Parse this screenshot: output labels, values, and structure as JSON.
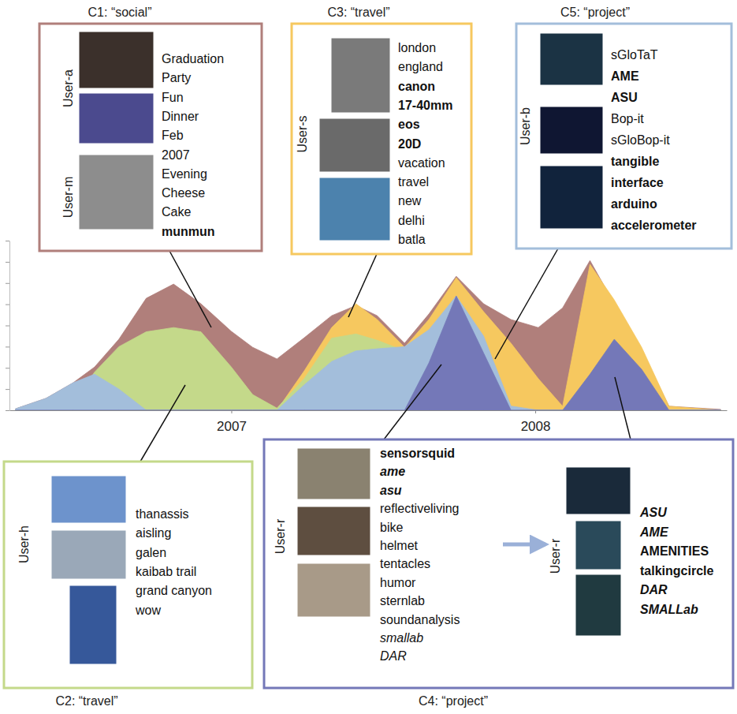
{
  "chart_data": {
    "type": "area",
    "stacked": false,
    "tick_labels": "x",
    "x": [
      2006.29,
      2006.39,
      2006.48,
      2006.55,
      2006.63,
      2006.72,
      2006.81,
      2006.9,
      2007,
      2007.07,
      2007.15,
      2007.24,
      2007.33,
      2007.41,
      2007.48,
      2007.57,
      2007.65,
      2007.74,
      2007.83,
      2007.92,
      2008.01,
      2008.09,
      2008.18,
      2008.26,
      2008.35,
      2008.44,
      2008.61
    ],
    "xlim": [
      2006.27,
      2008.63
    ],
    "xticks": [
      2007,
      2008
    ],
    "ylim": [
      0,
      8
    ],
    "yticks": [
      0,
      1,
      2,
      3,
      4,
      5,
      6,
      7,
      8
    ],
    "series": [
      {
        "name": "C1: “social”",
        "color": "#b07f7b",
        "values": [
          0.07,
          0.56,
          1.3,
          2.04,
          3.35,
          5.28,
          5.95,
          5.02,
          3.72,
          2.97,
          2.42,
          3.42,
          4.46,
          4.94,
          4.46,
          3.16,
          4.54,
          6.32,
          5.02,
          4.28,
          3.9,
          4.83,
          7.06,
          5.02,
          2.79,
          0.19,
          0.04
        ],
        "users": [
          {
            "user": "User-a",
            "tags": [
              "Graduation",
              "Party",
              "Fun",
              "Dinner",
              "Feb",
              "2007"
            ]
          },
          {
            "user": "User-m",
            "tags": [
              "Evening",
              "Cheese",
              "Cake",
              {
                "text": "munmun",
                "style": "bold"
              }
            ]
          }
        ]
      },
      {
        "name": "C2: “travel”",
        "color": "#c4d98a",
        "values": [
          0,
          0,
          0.3,
          1.8,
          3,
          3.7,
          3.9,
          3.7,
          2.04,
          0.74,
          0.1,
          1.5,
          3.4,
          3.6,
          3.3,
          2.8,
          0.5,
          0,
          0,
          0,
          0,
          0,
          0,
          0,
          0,
          0,
          0
        ],
        "users": [
          {
            "user": "User-h",
            "tags": [
              "thanassis",
              "aisling",
              "galen",
              "kaibab trail",
              "grand canyon",
              "wow"
            ]
          }
        ]
      },
      {
        "name": "C3: “travel”",
        "color": "#f6c85f",
        "values": [
          0,
          0,
          0,
          0,
          0,
          0,
          0,
          0,
          0,
          0,
          0,
          1.86,
          3.9,
          5.02,
          4.28,
          2.97,
          4.28,
          6.25,
          4.65,
          3.16,
          1.49,
          0.19,
          6.88,
          5.2,
          2.97,
          0.19,
          0
        ],
        "users": [
          {
            "user": "User-s",
            "tags": [
              "london",
              "england",
              {
                "text": "canon",
                "style": "bold"
              },
              {
                "text": "17-40mm",
                "style": "bold"
              },
              {
                "text": "eos",
                "style": "bold"
              },
              {
                "text": "20D",
                "style": "bold"
              },
              "vacation",
              "travel",
              "new",
              "delhi",
              "batla"
            ]
          }
        ]
      },
      {
        "name": "C4: “project”",
        "color": "#7478b8",
        "values": [
          0,
          0,
          0,
          0,
          0,
          0,
          0,
          0,
          0,
          0,
          0,
          0,
          0,
          0,
          0,
          0,
          2.23,
          5.39,
          2.7,
          0,
          0,
          0,
          1.7,
          3.35,
          1.93,
          0,
          0
        ],
        "users": [
          {
            "user": "User-r",
            "tags": [
              {
                "text": "sensorsquid",
                "style": "bold"
              },
              {
                "text": "ame",
                "style": "bold-italic"
              },
              {
                "text": "asu",
                "style": "bold-italic"
              },
              "reflectiveliving",
              "bike",
              "helmet",
              "tentacles",
              "humor",
              "sternlab",
              "soundanalysis",
              {
                "text": "smallab",
                "style": "italic"
              },
              {
                "text": "DAR",
                "style": "italic"
              }
            ]
          },
          {
            "user": "User-r",
            "tags": [
              {
                "text": "ASU",
                "style": "bold-italic"
              },
              {
                "text": "AME",
                "style": "bold-italic"
              },
              {
                "text": "AMENITIES",
                "style": "bold"
              },
              {
                "text": "talkingcircle",
                "style": "bold"
              },
              {
                "text": "DAR",
                "style": "bold-italic"
              },
              {
                "text": "SMALLab",
                "style": "bold-italic"
              }
            ]
          }
        ]
      },
      {
        "name": "C5: “project”",
        "color": "#a3bedb",
        "values": [
          0.07,
          0.56,
          1.3,
          1.7,
          1,
          0,
          0,
          0,
          0,
          0,
          0,
          1.2,
          2.3,
          2.8,
          2.9,
          3,
          3.8,
          5.39,
          3.5,
          0.2,
          0,
          0,
          0,
          0,
          0,
          0,
          0
        ],
        "users": [
          {
            "user": "User-b",
            "tags": [
              "sGloTaT",
              {
                "text": "AME",
                "style": "bold"
              },
              {
                "text": "ASU",
                "style": "bold"
              },
              "Bop-it",
              "sGloBop-it",
              {
                "text": "tangible",
                "style": "bold"
              },
              {
                "text": "interface",
                "style": "bold"
              },
              {
                "text": "arduino",
                "style": "bold"
              },
              {
                "text": "accelerometer",
                "style": "bold"
              }
            ]
          }
        ]
      }
    ]
  }
}
